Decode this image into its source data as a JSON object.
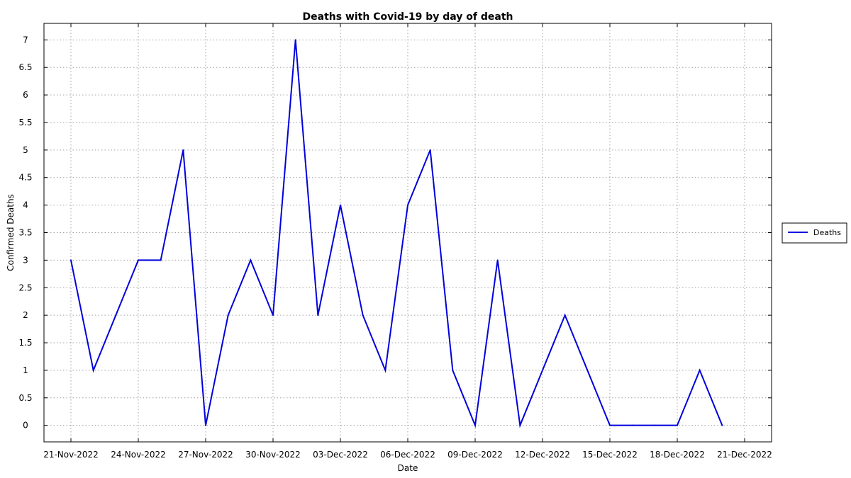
{
  "chart_data": {
    "type": "line",
    "title": "Deaths with Covid-19 by day of death",
    "xlabel": "Date",
    "ylabel": "Confirmed Deaths",
    "x_axis_type": "date",
    "xlim": [
      "2022-11-21",
      "2022-12-21"
    ],
    "ylim": [
      -0.3,
      7.3
    ],
    "x_tick_labels": [
      "21-Nov-2022",
      "24-Nov-2022",
      "27-Nov-2022",
      "30-Nov-2022",
      "03-Dec-2022",
      "06-Dec-2022",
      "09-Dec-2022",
      "12-Dec-2022",
      "15-Dec-2022",
      "18-Dec-2022",
      "21-Dec-2022"
    ],
    "y_ticks": [
      0,
      0.5,
      1,
      1.5,
      2,
      2.5,
      3,
      3.5,
      4,
      4.5,
      5,
      5.5,
      6,
      6.5,
      7
    ],
    "grid": true,
    "legend_position": "right",
    "series": [
      {
        "name": "Deaths",
        "color": "#0000dd",
        "x": [
          "2022-11-21",
          "2022-11-22",
          "2022-11-23",
          "2022-11-24",
          "2022-11-25",
          "2022-11-26",
          "2022-11-27",
          "2022-11-28",
          "2022-11-29",
          "2022-11-30",
          "2022-12-01",
          "2022-12-02",
          "2022-12-03",
          "2022-12-04",
          "2022-12-05",
          "2022-12-06",
          "2022-12-07",
          "2022-12-08",
          "2022-12-09",
          "2022-12-10",
          "2022-12-11",
          "2022-12-12",
          "2022-12-13",
          "2022-12-14",
          "2022-12-15",
          "2022-12-16",
          "2022-12-17",
          "2022-12-18",
          "2022-12-19",
          "2022-12-20"
        ],
        "values": [
          3,
          1,
          2,
          3,
          3,
          5,
          0,
          2,
          3,
          2,
          7,
          2,
          4,
          2,
          1,
          4,
          5,
          1,
          0,
          3,
          0,
          1,
          2,
          1,
          0,
          0,
          0,
          0,
          1,
          0
        ]
      }
    ]
  }
}
